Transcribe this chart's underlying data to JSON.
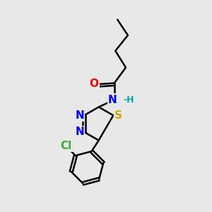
{
  "background_color": "#e8e8e8",
  "atom_colors": {
    "C": "#000000",
    "N": "#0000ff",
    "O": "#ff0000",
    "S": "#ccaa00",
    "Cl": "#3aaa3a",
    "H": "#00aaaa"
  },
  "bond_lw": 1.8,
  "figsize": [
    3.0,
    3.0
  ],
  "dpi": 100
}
